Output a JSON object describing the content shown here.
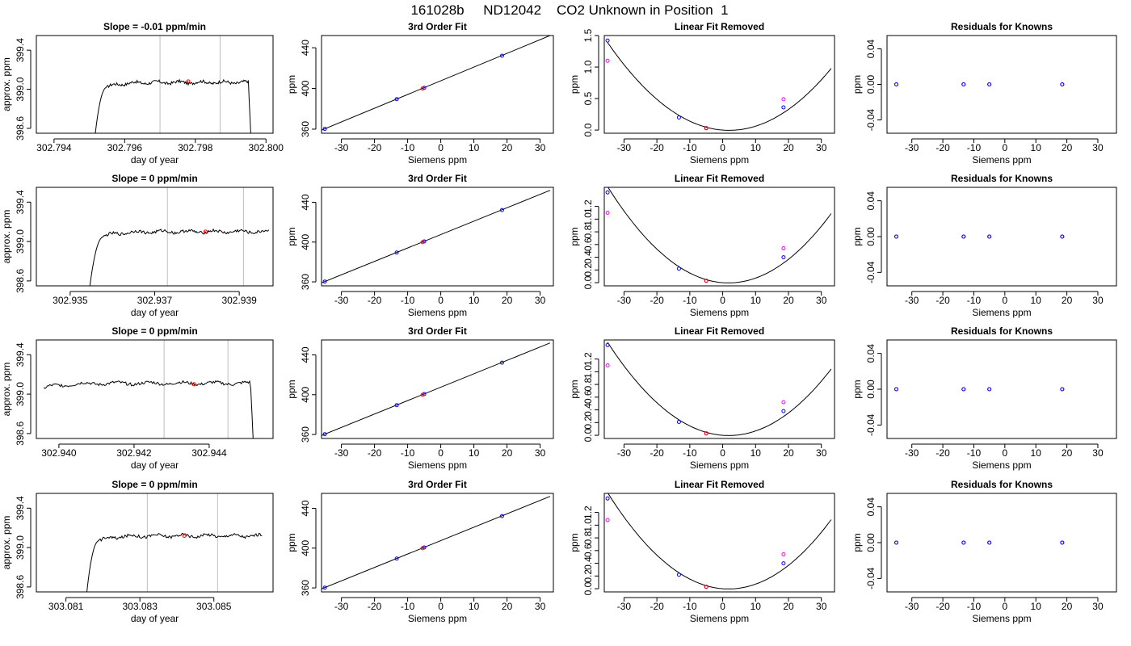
{
  "suptitle": "161028b     ND12042    CO2 Unknown in Position  1",
  "colors": {
    "line": "#000000",
    "box": "#000000",
    "vline": "#bebebe",
    "marker_red": "#ff0000",
    "marker_blue": "#0000ff",
    "marker_magenta": "#ff00ff"
  },
  "chart_data": [
    {
      "type": "line",
      "title": "Slope =  -0.01  ppm/min",
      "xlabel": "day of year",
      "ylabel": "approx. ppm",
      "xlim": [
        302.7935,
        302.8002
      ],
      "ylim": [
        398.55,
        399.55
      ],
      "xticks": [
        302.794,
        302.796,
        302.798,
        302.8
      ],
      "xtick_labels": [
        "302.794",
        "302.796",
        "302.798",
        "302.800"
      ],
      "yticks": [
        398.6,
        399.0,
        399.4
      ],
      "ytick_labels": [
        "398.6",
        "399.0",
        "399.4"
      ],
      "vlines": [
        302.797,
        302.7987
      ],
      "trace": {
        "start": 302.7951,
        "rise_to": 302.7955,
        "plateau_end": 302.7995,
        "end": 302.7996,
        "low": 398.3,
        "level": 399.07,
        "noise": 0.015
      },
      "marker": {
        "x": 302.7978,
        "y": 399.08
      },
      "grid": false
    },
    {
      "type": "scatter",
      "title": "3rd Order Fit",
      "xlabel": "Siemens ppm",
      "ylabel": "ppm",
      "xlim": [
        -36,
        34
      ],
      "ylim": [
        356,
        452
      ],
      "xticks": [
        -30,
        -20,
        -10,
        0,
        10,
        20,
        30
      ],
      "xtick_labels": [
        "-30",
        "-20",
        "-10",
        "0",
        "10",
        "20",
        "30"
      ],
      "yticks": [
        360,
        400,
        440
      ],
      "ytick_labels": [
        "360",
        "400",
        "440"
      ],
      "fit": {
        "type": "linear",
        "x0": -36,
        "y0": 359.0,
        "x1": 33,
        "y1": 452.0
      },
      "points": [
        {
          "x": -35,
          "y": 360.3
        },
        {
          "x": -13.3,
          "y": 389.5
        },
        {
          "x": -5.0,
          "y": 400.6
        },
        {
          "x": 18.5,
          "y": 432.2
        }
      ],
      "unknown": {
        "x": -5.5,
        "y": 399.9
      },
      "grid": false
    },
    {
      "type": "scatter",
      "title": "Linear Fit Removed",
      "xlabel": "Siemens ppm",
      "ylabel": "ppm",
      "xlim": [
        -36,
        34
      ],
      "ylim": [
        -0.05,
        1.5
      ],
      "xticks": [
        -30,
        -20,
        -10,
        0,
        10,
        20,
        30
      ],
      "xtick_labels": [
        "-30",
        "-20",
        "-10",
        "0",
        "10",
        "20",
        "30"
      ],
      "yticks": [
        0,
        0.5,
        1,
        1.5
      ],
      "ytick_labels": [
        "0.0",
        "0.5",
        "1.0",
        "1.5"
      ],
      "curve": {
        "x_min": -35,
        "x_max": 33,
        "coefs": [
          0,
          -0.004,
          0.00102
        ]
      },
      "points": [
        {
          "x": -35,
          "y": 1.42
        },
        {
          "x": -13.3,
          "y": 0.2
        },
        {
          "x": -5.0,
          "y": 0.03
        },
        {
          "x": 18.5,
          "y": 0.36
        }
      ],
      "magenta_points": [
        {
          "x": -35,
          "y": 1.1
        },
        {
          "x": 18.5,
          "y": 0.49
        }
      ],
      "unknown": {
        "x": -5.0,
        "y": 0.03
      },
      "grid": false
    },
    {
      "type": "scatter",
      "title": "Residuals for Knowns",
      "xlabel": "Siemens ppm",
      "ylabel": "ppm",
      "xlim": [
        -38,
        36
      ],
      "ylim": [
        -0.055,
        0.055
      ],
      "xticks": [
        -30,
        -20,
        -10,
        0,
        10,
        20,
        30
      ],
      "xtick_labels": [
        "-30",
        "-20",
        "-10",
        "0",
        "10",
        "20",
        "30"
      ],
      "yticks": [
        -0.04,
        0,
        0.04
      ],
      "ytick_labels": [
        "-0.04",
        "0.00",
        "0.04"
      ],
      "points": [
        {
          "x": -35,
          "y": 0
        },
        {
          "x": -13.3,
          "y": 0
        },
        {
          "x": -5.0,
          "y": 0
        },
        {
          "x": 18.5,
          "y": 0
        }
      ],
      "grid": false
    },
    {
      "type": "line",
      "title": "Slope =  0  ppm/min",
      "xlabel": "day of year",
      "ylabel": "approx. ppm",
      "xlim": [
        302.9342,
        302.9398
      ],
      "ylim": [
        398.55,
        399.55
      ],
      "xticks": [
        302.935,
        302.937,
        302.939
      ],
      "xtick_labels": [
        "302.935",
        "302.937",
        "302.939"
      ],
      "vlines": [
        302.9373,
        302.9391
      ],
      "yticks": [
        398.6,
        399.0,
        399.4
      ],
      "ytick_labels": [
        "398.6",
        "399.0",
        "399.4"
      ],
      "trace": {
        "start": 302.9354,
        "rise_to": 302.9358,
        "plateau_end": 302.9397,
        "end": 302.9397,
        "low": 398.3,
        "level": 399.1,
        "noise": 0.015
      },
      "marker": {
        "x": 302.9382,
        "y": 399.1
      },
      "grid": false
    },
    {
      "type": "scatter",
      "title": "3rd Order Fit",
      "xlabel": "Siemens ppm",
      "ylabel": "ppm",
      "xlim": [
        -36,
        34
      ],
      "ylim": [
        356,
        455
      ],
      "xticks": [
        -30,
        -20,
        -10,
        0,
        10,
        20,
        30
      ],
      "xtick_labels": [
        "-30",
        "-20",
        "-10",
        "0",
        "10",
        "20",
        "30"
      ],
      "yticks": [
        360,
        400,
        440
      ],
      "ytick_labels": [
        "360",
        "400",
        "440"
      ],
      "fit": {
        "type": "linear",
        "x0": -36,
        "y0": 359.0,
        "x1": 33,
        "y1": 452.0
      },
      "points": [
        {
          "x": -35,
          "y": 360.3
        },
        {
          "x": -13.3,
          "y": 389.5
        },
        {
          "x": -5.0,
          "y": 400.6
        },
        {
          "x": 18.5,
          "y": 432.2
        }
      ],
      "unknown": {
        "x": -5.5,
        "y": 399.9
      },
      "grid": false
    },
    {
      "type": "scatter",
      "title": "Linear Fit Removed",
      "xlabel": "Siemens ppm",
      "ylabel": "ppm",
      "xlim": [
        -36,
        34
      ],
      "ylim": [
        -0.05,
        1.5
      ],
      "xticks": [
        -30,
        -20,
        -10,
        0,
        10,
        20,
        30
      ],
      "xtick_labels": [
        "-30",
        "-20",
        "-10",
        "0",
        "10",
        "20",
        "30"
      ],
      "yticks": [
        0,
        0.2,
        0.4,
        0.6,
        0.8,
        1.0,
        1.2
      ],
      "ytick_labels": [
        "0.0",
        "0.2",
        "0.4",
        "0.6",
        "0.8",
        "1.0",
        "1.2"
      ],
      "curve": {
        "x_min": -35,
        "x_max": 33,
        "coefs": [
          0,
          -0.004,
          0.00112
        ]
      },
      "points": [
        {
          "x": -35,
          "y": 1.42
        },
        {
          "x": -13.3,
          "y": 0.22
        },
        {
          "x": -5.0,
          "y": 0.03
        },
        {
          "x": 18.5,
          "y": 0.4
        }
      ],
      "magenta_points": [
        {
          "x": -35,
          "y": 1.1
        },
        {
          "x": 18.5,
          "y": 0.54
        }
      ],
      "unknown": {
        "x": -5.0,
        "y": 0.03
      },
      "grid": false
    },
    {
      "type": "scatter",
      "title": "Residuals for Knowns",
      "xlabel": "Siemens ppm",
      "ylabel": "ppm",
      "xlim": [
        -38,
        36
      ],
      "ylim": [
        -0.055,
        0.055
      ],
      "xticks": [
        -30,
        -20,
        -10,
        0,
        10,
        20,
        30
      ],
      "xtick_labels": [
        "-30",
        "-20",
        "-10",
        "0",
        "10",
        "20",
        "30"
      ],
      "yticks": [
        -0.04,
        0,
        0.04
      ],
      "ytick_labels": [
        "-0.04",
        "0.00",
        "0.04"
      ],
      "points": [
        {
          "x": -35,
          "y": 0
        },
        {
          "x": -13.3,
          "y": 0
        },
        {
          "x": -5.0,
          "y": 0
        },
        {
          "x": 18.5,
          "y": 0
        }
      ],
      "grid": false
    },
    {
      "type": "line",
      "title": "Slope =  0  ppm/min",
      "xlabel": "day of year",
      "ylabel": "approx. ppm",
      "xlim": [
        302.9394,
        302.9457
      ],
      "ylim": [
        398.55,
        399.55
      ],
      "xticks": [
        302.94,
        302.942,
        302.944
      ],
      "xtick_labels": [
        "302.940",
        "302.942",
        "302.944"
      ],
      "vlines": [
        302.9428,
        302.9445
      ],
      "yticks": [
        398.6,
        399.0,
        399.4
      ],
      "ytick_labels": [
        "398.6",
        "399.0",
        "399.4"
      ],
      "trace": {
        "start": 302.9396,
        "rise_to": 302.9396,
        "plateau_end": 302.9451,
        "end": 302.9452,
        "low": 398.3,
        "level": 399.11,
        "noise": 0.015
      },
      "marker": {
        "x": 302.9436,
        "y": 399.1
      },
      "grid": false
    },
    {
      "type": "scatter",
      "title": "3rd Order Fit",
      "xlabel": "Siemens ppm",
      "ylabel": "ppm",
      "xlim": [
        -36,
        34
      ],
      "ylim": [
        356,
        455
      ],
      "xticks": [
        -30,
        -20,
        -10,
        0,
        10,
        20,
        30
      ],
      "xtick_labels": [
        "-30",
        "-20",
        "-10",
        "0",
        "10",
        "20",
        "30"
      ],
      "yticks": [
        360,
        400,
        440
      ],
      "ytick_labels": [
        "360",
        "400",
        "440"
      ],
      "fit": {
        "type": "linear",
        "x0": -36,
        "y0": 359.0,
        "x1": 33,
        "y1": 452.0
      },
      "points": [
        {
          "x": -35,
          "y": 360.3
        },
        {
          "x": -13.3,
          "y": 389.5
        },
        {
          "x": -5.0,
          "y": 400.6
        },
        {
          "x": 18.5,
          "y": 432.2
        }
      ],
      "unknown": {
        "x": -5.5,
        "y": 399.9
      },
      "grid": false
    },
    {
      "type": "scatter",
      "title": "Linear Fit Removed",
      "xlabel": "Siemens ppm",
      "ylabel": "ppm",
      "xlim": [
        -36,
        34
      ],
      "ylim": [
        -0.05,
        1.5
      ],
      "xticks": [
        -30,
        -20,
        -10,
        0,
        10,
        20,
        30
      ],
      "xtick_labels": [
        "-30",
        "-20",
        "-10",
        "0",
        "10",
        "20",
        "30"
      ],
      "yticks": [
        0,
        0.2,
        0.4,
        0.6,
        0.8,
        1.0,
        1.2
      ],
      "ytick_labels": [
        "0.0",
        "0.2",
        "0.4",
        "0.6",
        "0.8",
        "1.0",
        "1.2"
      ],
      "curve": {
        "x_min": -35,
        "x_max": 33,
        "coefs": [
          0,
          -0.004,
          0.00108
        ]
      },
      "points": [
        {
          "x": -35,
          "y": 1.42
        },
        {
          "x": -13.3,
          "y": 0.21
        },
        {
          "x": -5.0,
          "y": 0.03
        },
        {
          "x": 18.5,
          "y": 0.38
        }
      ],
      "magenta_points": [
        {
          "x": -35,
          "y": 1.1
        },
        {
          "x": 18.5,
          "y": 0.52
        }
      ],
      "unknown": {
        "x": -5.0,
        "y": 0.03
      },
      "grid": false
    },
    {
      "type": "scatter",
      "title": "Residuals for Knowns",
      "xlabel": "Siemens ppm",
      "ylabel": "ppm",
      "xlim": [
        -38,
        36
      ],
      "ylim": [
        -0.055,
        0.055
      ],
      "xticks": [
        -30,
        -20,
        -10,
        0,
        10,
        20,
        30
      ],
      "xtick_labels": [
        "-30",
        "-20",
        "-10",
        "0",
        "10",
        "20",
        "30"
      ],
      "yticks": [
        -0.04,
        0,
        0.04
      ],
      "ytick_labels": [
        "-0.04",
        "0.00",
        "0.04"
      ],
      "points": [
        {
          "x": -35,
          "y": 0
        },
        {
          "x": -13.3,
          "y": 0
        },
        {
          "x": -5.0,
          "y": 0
        },
        {
          "x": 18.5,
          "y": 0
        }
      ],
      "grid": false
    },
    {
      "type": "line",
      "title": "Slope =  0  ppm/min",
      "xlabel": "day of year",
      "ylabel": "approx. ppm",
      "xlim": [
        303.0802,
        303.0866
      ],
      "ylim": [
        398.55,
        399.55
      ],
      "xticks": [
        303.081,
        303.083,
        303.085
      ],
      "xtick_labels": [
        "303.081",
        "303.083",
        "303.085"
      ],
      "vlines": [
        303.0832,
        303.0851
      ],
      "yticks": [
        398.6,
        399.0,
        399.4
      ],
      "ytick_labels": [
        "398.6",
        "399.0",
        "399.4"
      ],
      "trace": {
        "start": 303.0815,
        "rise_to": 303.0819,
        "plateau_end": 303.0863,
        "end": 303.0863,
        "low": 398.3,
        "level": 399.12,
        "noise": 0.015
      },
      "marker": {
        "x": 303.0842,
        "y": 399.12
      },
      "grid": false
    },
    {
      "type": "scatter",
      "title": "3rd Order Fit",
      "xlabel": "Siemens ppm",
      "ylabel": "ppm",
      "xlim": [
        -36,
        34
      ],
      "ylim": [
        356,
        455
      ],
      "xticks": [
        -30,
        -20,
        -10,
        0,
        10,
        20,
        30
      ],
      "xtick_labels": [
        "-30",
        "-20",
        "-10",
        "0",
        "10",
        "20",
        "30"
      ],
      "yticks": [
        360,
        400,
        440
      ],
      "ytick_labels": [
        "360",
        "400",
        "440"
      ],
      "fit": {
        "type": "linear",
        "x0": -36,
        "y0": 359.0,
        "x1": 33,
        "y1": 452.0
      },
      "points": [
        {
          "x": -35,
          "y": 360.3
        },
        {
          "x": -13.3,
          "y": 389.5
        },
        {
          "x": -5.0,
          "y": 400.6
        },
        {
          "x": 18.5,
          "y": 432.2
        }
      ],
      "unknown": {
        "x": -5.5,
        "y": 399.9
      },
      "grid": false
    },
    {
      "type": "scatter",
      "title": "Linear Fit Removed",
      "xlabel": "Siemens ppm",
      "ylabel": "ppm",
      "xlim": [
        -36,
        34
      ],
      "ylim": [
        -0.05,
        1.5
      ],
      "xticks": [
        -30,
        -20,
        -10,
        0,
        10,
        20,
        30
      ],
      "xtick_labels": [
        "-30",
        "-20",
        "-10",
        "0",
        "10",
        "20",
        "30"
      ],
      "yticks": [
        0,
        0.2,
        0.4,
        0.6,
        0.8,
        1.0,
        1.2
      ],
      "ytick_labels": [
        "0.0",
        "0.2",
        "0.4",
        "0.6",
        "0.8",
        "1.0",
        "1.2"
      ],
      "curve": {
        "x_min": -35,
        "x_max": 33,
        "coefs": [
          0,
          -0.004,
          0.00112
        ]
      },
      "points": [
        {
          "x": -35,
          "y": 1.42
        },
        {
          "x": -13.3,
          "y": 0.22
        },
        {
          "x": -5.0,
          "y": 0.03
        },
        {
          "x": 18.5,
          "y": 0.4
        }
      ],
      "magenta_points": [
        {
          "x": -35,
          "y": 1.08
        },
        {
          "x": 18.5,
          "y": 0.54
        }
      ],
      "unknown": {
        "x": -5.0,
        "y": 0.03
      },
      "grid": false
    },
    {
      "type": "scatter",
      "title": "Residuals for Knowns",
      "xlabel": "Siemens ppm",
      "ylabel": "ppm",
      "xlim": [
        -38,
        36
      ],
      "ylim": [
        -0.055,
        0.055
      ],
      "xticks": [
        -30,
        -20,
        -10,
        0,
        10,
        20,
        30
      ],
      "xtick_labels": [
        "-30",
        "-20",
        "-10",
        "0",
        "10",
        "20",
        "30"
      ],
      "yticks": [
        -0.04,
        0,
        0.04
      ],
      "ytick_labels": [
        "-0.04",
        "0.00",
        "0.04"
      ],
      "points": [
        {
          "x": -35,
          "y": 0
        },
        {
          "x": -13.3,
          "y": 0
        },
        {
          "x": -5.0,
          "y": 0
        },
        {
          "x": 18.5,
          "y": 0
        }
      ],
      "grid": false
    }
  ]
}
